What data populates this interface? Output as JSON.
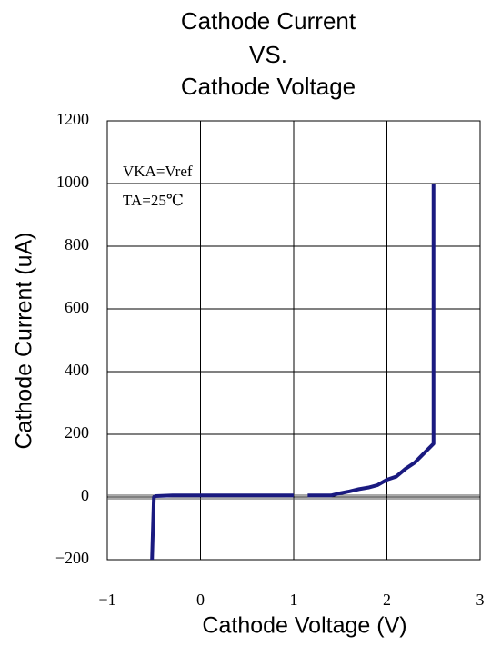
{
  "chart_data": {
    "type": "line",
    "title": [
      "Cathode Current",
      "VS.",
      "Cathode Voltage"
    ],
    "x_label": "Cathode Voltage (V)",
    "y_label": "Cathode Current (uA)",
    "annotations": [
      "VKA=Vref",
      "TA=25℃"
    ],
    "xlim": [
      -1,
      3
    ],
    "xticks": [
      {
        "value": -1,
        "label": "−1"
      },
      0,
      1,
      2,
      3
    ],
    "ylim": [
      -200,
      1200
    ],
    "yticks": [
      {
        "value": -200,
        "label": "−200"
      },
      0,
      200,
      400,
      600,
      800,
      1000,
      1200
    ],
    "grid": true,
    "series": [
      {
        "name": "Cathode Current",
        "color": "#1a1a80",
        "x": [
          -0.52,
          -0.5,
          -0.48,
          -0.3,
          0.0,
          0.5,
          1.0,
          1.1,
          1.15,
          1.4,
          1.5,
          1.6,
          1.7,
          1.8,
          1.9,
          2.0,
          2.1,
          2.2,
          2.3,
          2.4,
          2.5,
          2.5
        ],
        "values": [
          -200,
          0,
          3,
          5,
          5,
          5,
          5,
          null,
          5,
          5,
          12,
          18,
          25,
          30,
          38,
          55,
          65,
          90,
          110,
          140,
          170,
          1000
        ]
      }
    ]
  }
}
